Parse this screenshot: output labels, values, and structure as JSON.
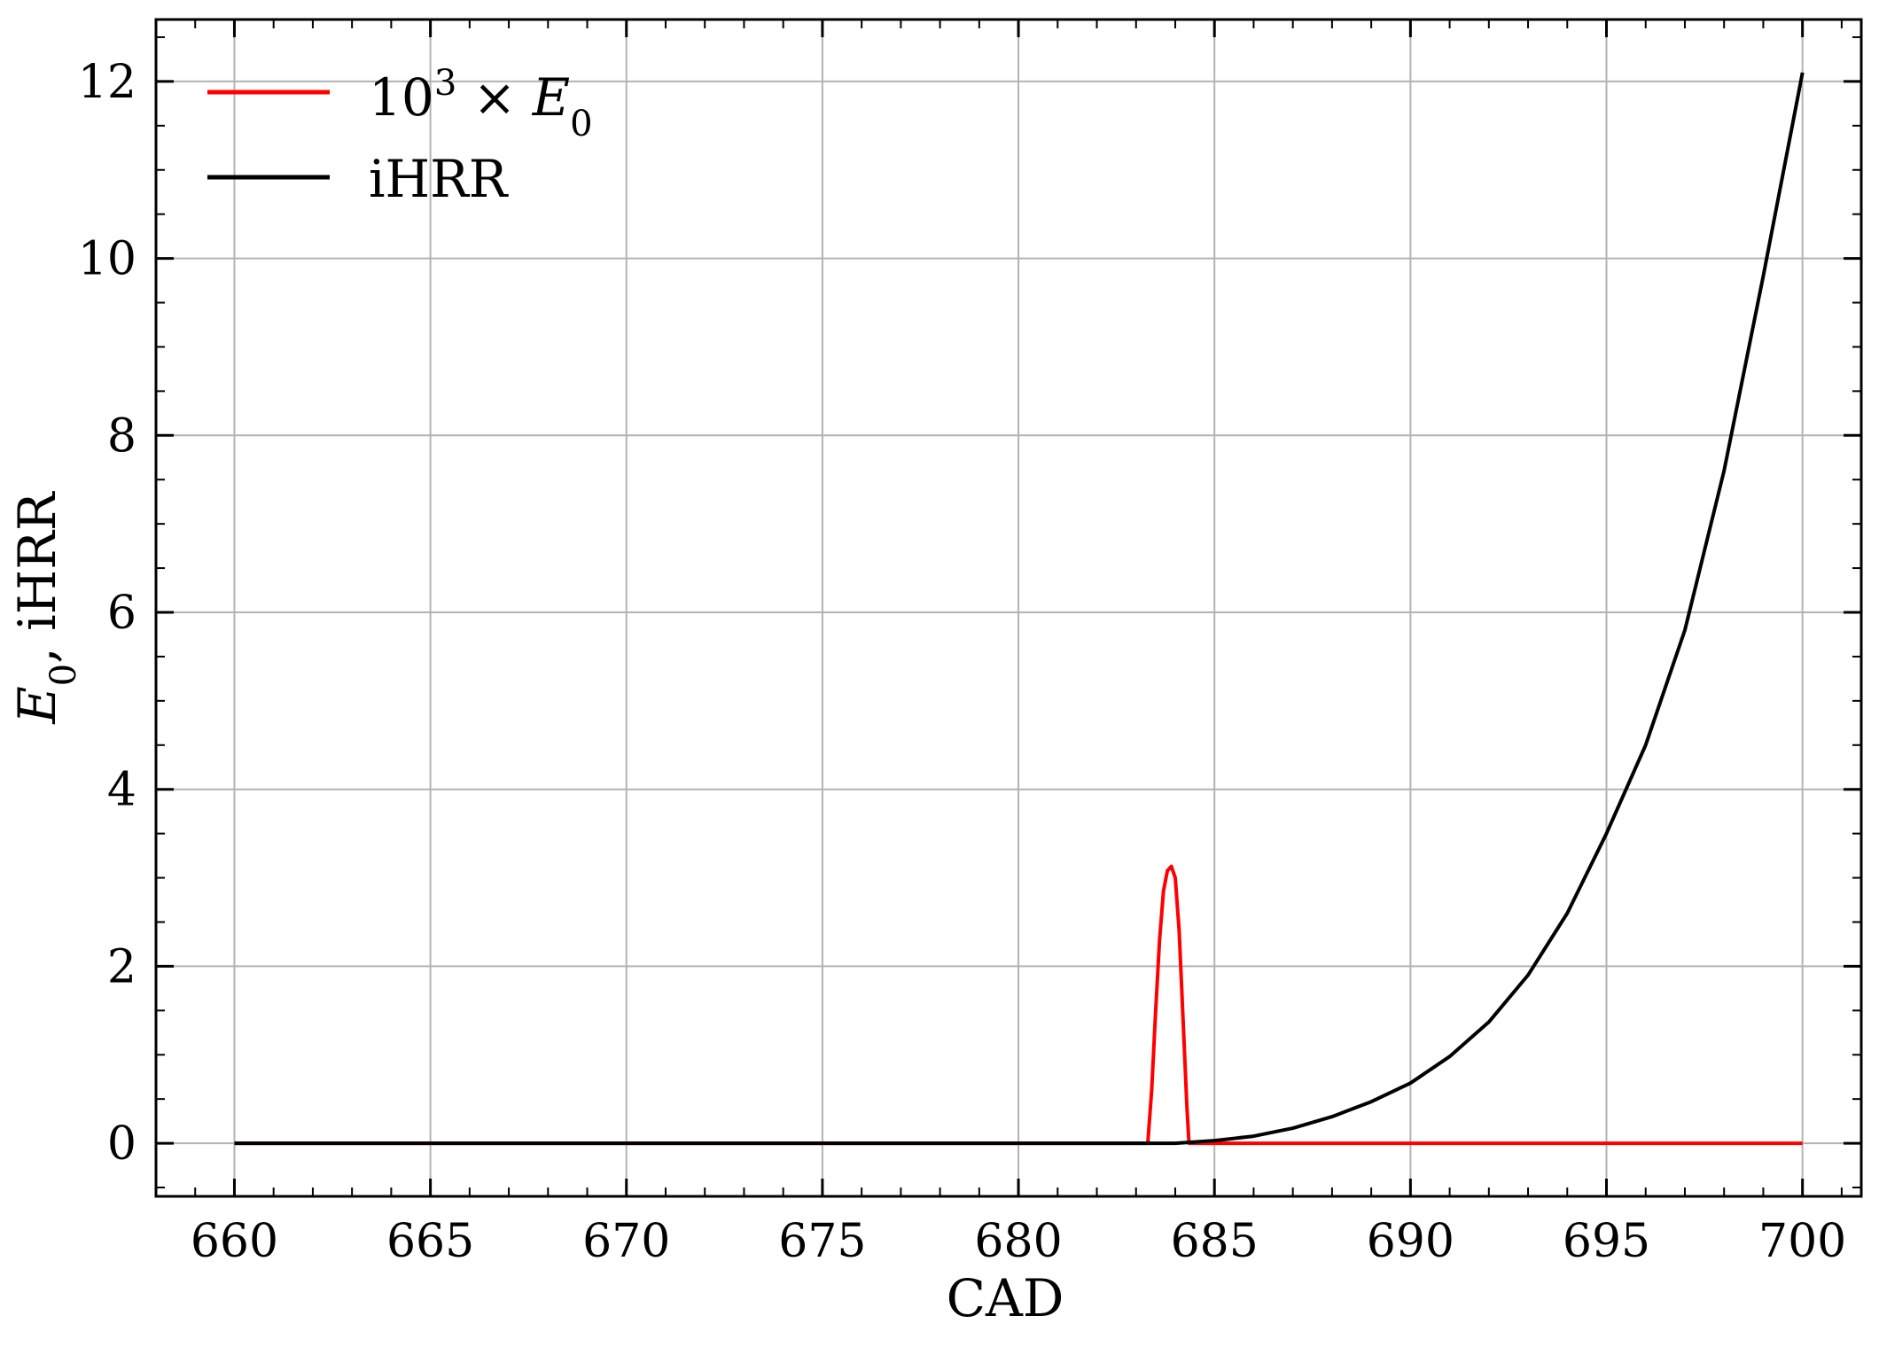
{
  "chart_data": {
    "type": "line",
    "xlabel": "CAD",
    "ylabel": {
      "prefix": "E",
      "sub": "0",
      "suffix": ", iHRR"
    },
    "xlim": [
      658,
      701.5
    ],
    "ylim": [
      -0.6,
      12.7
    ],
    "xticks": [
      660,
      665,
      670,
      675,
      680,
      685,
      690,
      695,
      700
    ],
    "yticks": [
      0,
      2,
      4,
      6,
      8,
      10,
      12
    ],
    "grid": true,
    "legend_position": "top-left",
    "series": [
      {
        "name": "10^3 × E0",
        "legend": {
          "base": "10",
          "sup": "3",
          "times": " × ",
          "var": "E",
          "sub": "0"
        },
        "color": "#ff0000",
        "x": [
          660,
          683.3,
          683.4,
          683.5,
          683.6,
          683.7,
          683.8,
          683.9,
          684.0,
          684.1,
          684.2,
          684.3,
          684.35,
          700
        ],
        "y": [
          0,
          0,
          0.6,
          1.5,
          2.3,
          2.85,
          3.08,
          3.13,
          3.0,
          2.4,
          1.4,
          0.4,
          0,
          0
        ]
      },
      {
        "name": "iHRR",
        "color": "#000000",
        "x": [
          660,
          684,
          685,
          686,
          687,
          688,
          689,
          690,
          691,
          692,
          693,
          694,
          695,
          696,
          697,
          698,
          699,
          700
        ],
        "y": [
          0,
          0,
          0.03,
          0.08,
          0.17,
          0.3,
          0.47,
          0.68,
          0.98,
          1.37,
          1.9,
          2.6,
          3.5,
          4.5,
          5.8,
          7.6,
          9.8,
          12.1
        ]
      }
    ]
  }
}
